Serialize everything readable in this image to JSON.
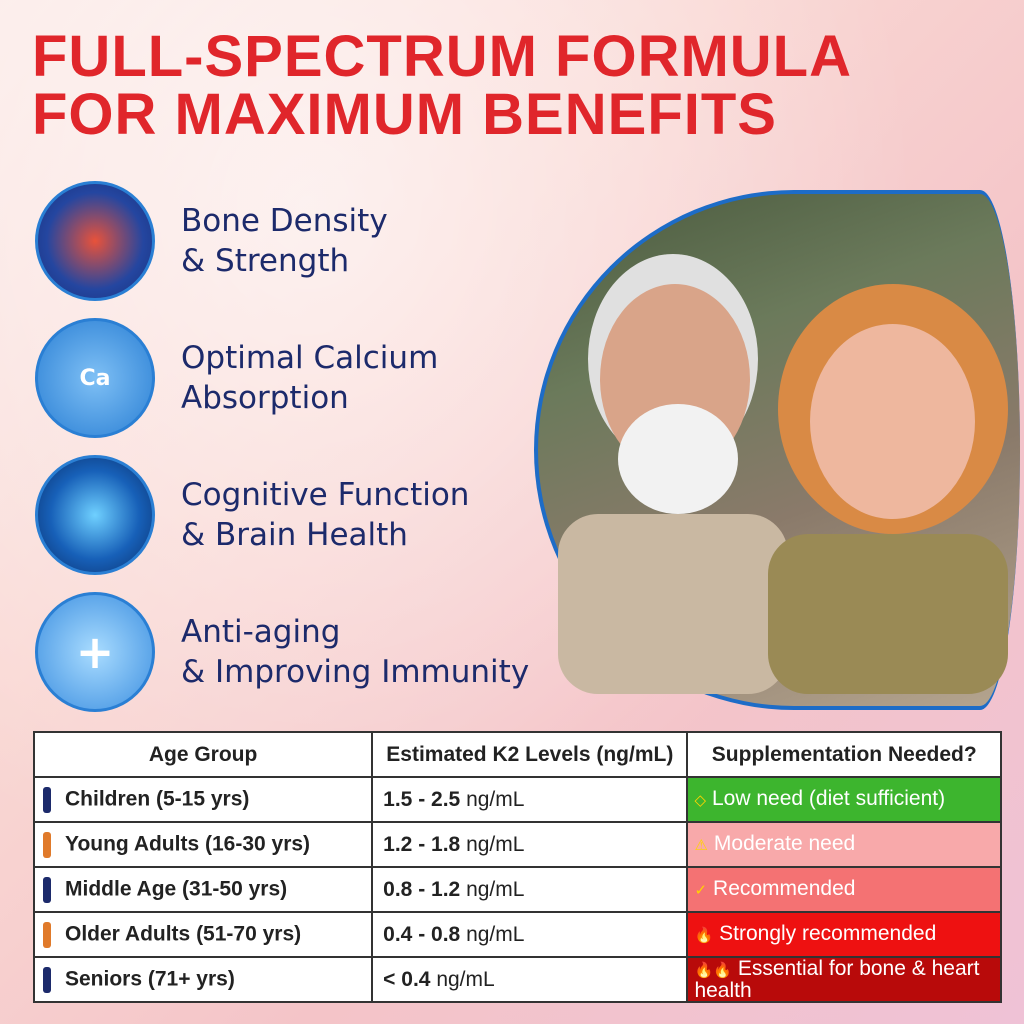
{
  "title": {
    "line1": "FULL-SPECTRUM FORMULA",
    "line2": "FOR MAXIMUM BENEFITS"
  },
  "benefits": [
    {
      "icon": "bone-joint-icon",
      "line1": "Bone Density",
      "line2": "& Strength"
    },
    {
      "icon": "calcium-knee-icon",
      "glyph": "Ca",
      "line1": "Optimal Calcium",
      "line2": "Absorption"
    },
    {
      "icon": "brain-icon",
      "line1": "Cognitive Function",
      "line2": "& Brain Health"
    },
    {
      "icon": "shield-cross-icon",
      "glyph": "+",
      "line1": "Anti-aging",
      "line2": "& Improving Immunity"
    }
  ],
  "table": {
    "headers": [
      "Age Group",
      "Estimated K2 Levels (ng/mL)",
      "Supplementation Needed?"
    ],
    "rows": [
      {
        "age": "Children (5-15 yrs)",
        "level": "1.5 - 2.5",
        "unit": "ng/mL",
        "icon": "◇",
        "need": "Low need (diet sufficient)",
        "color": "#3db52e"
      },
      {
        "age": "Young Adults (16-30 yrs)",
        "level": "1.2 - 1.8",
        "unit": "ng/mL",
        "icon": "⚠",
        "need": "Moderate need",
        "color": "#f8a9aa"
      },
      {
        "age": "Middle Age (31-50 yrs)",
        "level": "0.8 - 1.2",
        "unit": "ng/mL",
        "icon": "✓",
        "need": "Recommended",
        "color": "#f47273"
      },
      {
        "age": "Older Adults (51-70 yrs)",
        "level": "0.4 - 0.8",
        "unit": "ng/mL",
        "icon": "🔥",
        "need": "Strongly recommended",
        "color": "#ee1111"
      },
      {
        "age": "Seniors (71+ yrs)",
        "level": "< 0.4",
        "unit": "ng/mL",
        "icon": "🔥🔥",
        "need": "Essential for bone & heart health",
        "color": "#b80a0a"
      }
    ]
  }
}
